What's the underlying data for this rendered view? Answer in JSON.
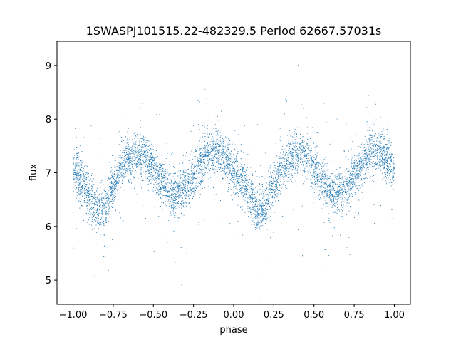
{
  "chart_data": {
    "type": "scatter",
    "title": "1SWASPJ101515.22-482329.5 Period 62667.57031s",
    "xlabel": "phase",
    "ylabel": "flux",
    "xlim": [
      -1.1,
      1.1
    ],
    "ylim": [
      4.55,
      9.45
    ],
    "xticks": [
      -1.0,
      -0.75,
      -0.5,
      -0.25,
      0.0,
      0.25,
      0.5,
      0.75,
      1.0
    ],
    "xtick_labels": [
      "−1.00",
      "−0.75",
      "−0.50",
      "−0.25",
      "0.00",
      "0.25",
      "0.50",
      "0.75",
      "1.00"
    ],
    "yticks": [
      5,
      6,
      7,
      8,
      9
    ],
    "ytick_labels": [
      "5",
      "6",
      "7",
      "8",
      "9"
    ],
    "grid": false,
    "marker_color": "#1f77b4",
    "series": [
      {
        "phase_range": [
          -1.0,
          1.0
        ],
        "approx_count": 9000,
        "scatter_sigma": 0.2,
        "profile_phase": [
          -1.0,
          -0.95,
          -0.9,
          -0.85,
          -0.8,
          -0.75,
          -0.7,
          -0.65,
          -0.6,
          -0.55,
          -0.5,
          -0.45,
          -0.4,
          -0.35,
          -0.3,
          -0.25,
          -0.2,
          -0.15,
          -0.1,
          -0.05,
          0.0,
          0.05,
          0.1,
          0.15,
          0.2,
          0.25,
          0.3,
          0.35,
          0.4,
          0.45,
          0.5,
          0.55,
          0.6,
          0.65,
          0.7,
          0.75,
          0.8,
          0.85,
          0.9,
          0.95,
          1.0
        ],
        "profile_flux": [
          7.05,
          6.85,
          6.55,
          6.3,
          6.4,
          6.75,
          7.1,
          7.3,
          7.35,
          7.3,
          7.1,
          6.85,
          6.65,
          6.6,
          6.7,
          6.95,
          7.2,
          7.35,
          7.4,
          7.25,
          7.05,
          6.85,
          6.55,
          6.3,
          6.4,
          6.75,
          7.1,
          7.3,
          7.35,
          7.3,
          7.1,
          6.85,
          6.65,
          6.6,
          6.7,
          6.95,
          7.2,
          7.35,
          7.4,
          7.25,
          7.05
        ]
      }
    ]
  }
}
